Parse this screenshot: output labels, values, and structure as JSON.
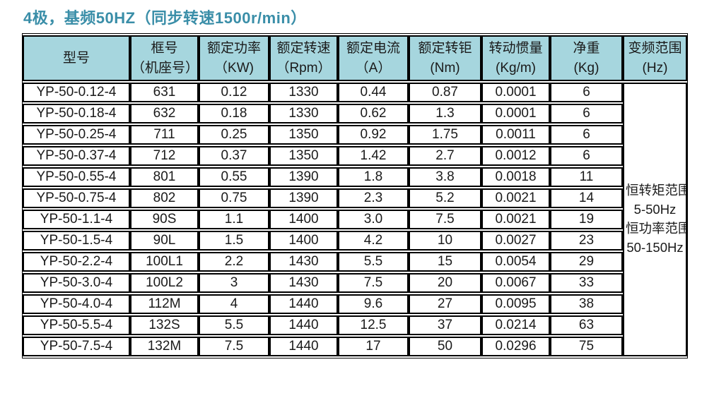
{
  "title": "4极，基频50HZ（同步转速1500r/min）",
  "colors": {
    "title_color": "#3a8ea8",
    "header_bg": "#a6d6de",
    "border": "#000000",
    "row_bg": "#ffffff"
  },
  "table": {
    "columns": [
      {
        "label": "型号",
        "unit": ""
      },
      {
        "label": "框号",
        "unit": "（机座号）"
      },
      {
        "label": "额定功率",
        "unit": "（KW)"
      },
      {
        "label": "额定转速",
        "unit": "（Rpm）"
      },
      {
        "label": "额定电流",
        "unit": "（A）"
      },
      {
        "label": "额定转钜",
        "unit": "(Nm)"
      },
      {
        "label": "转动惯量",
        "unit": "(Kg/m)"
      },
      {
        "label": "净重",
        "unit": "(Kg)"
      },
      {
        "label": "变频范围",
        "unit": "(Hz)"
      }
    ],
    "rows": [
      [
        "YP-50-0.12-4",
        "631",
        "0.12",
        "1330",
        "0.44",
        "0.87",
        "0.0001",
        "6"
      ],
      [
        "YP-50-0.18-4",
        "632",
        "0.18",
        "1330",
        "0.62",
        "1.3",
        "0.0001",
        "6"
      ],
      [
        "YP-50-0.25-4",
        "711",
        "0.25",
        "1350",
        "0.92",
        "1.75",
        "0.0011",
        "6"
      ],
      [
        "YP-50-0.37-4",
        "712",
        "0.37",
        "1350",
        "1.42",
        "2.7",
        "0.0012",
        "6"
      ],
      [
        "YP-50-0.55-4",
        "801",
        "0.55",
        "1390",
        "1.8",
        "3.8",
        "0.0018",
        "11"
      ],
      [
        "YP-50-0.75-4",
        "802",
        "0.75",
        "1390",
        "2.3",
        "5.2",
        "0.0021",
        "14"
      ],
      [
        "YP-50-1.1-4",
        "90S",
        "1.1",
        "1400",
        "3.0",
        "7.5",
        "0.0021",
        "19"
      ],
      [
        "YP-50-1.5-4",
        "90L",
        "1.5",
        "1400",
        "4.2",
        "10",
        "0.0027",
        "23"
      ],
      [
        "YP-50-2.2-4",
        "100L1",
        "2.2",
        "1430",
        "5.5",
        "15",
        "0.0054",
        "29"
      ],
      [
        "YP-50-3.0-4",
        "100L2",
        "3",
        "1430",
        "7.5",
        "20",
        "0.0067",
        "33"
      ],
      [
        "YP-50-4.0-4",
        "112M",
        "4",
        "1440",
        "9.6",
        "27",
        "0.0095",
        "38"
      ],
      [
        "YP-50-5.5-4",
        "132S",
        "5.5",
        "1440",
        "12.5",
        "37",
        "0.0214",
        "63"
      ],
      [
        "YP-50-7.5-4",
        "132M",
        "7.5",
        "1440",
        "17",
        "50",
        "0.0296",
        "75"
      ]
    ],
    "range_cell": {
      "lines": [
        "恒转矩范围",
        "5-50Hz",
        "恒功率范围",
        "50-150Hz"
      ]
    }
  }
}
